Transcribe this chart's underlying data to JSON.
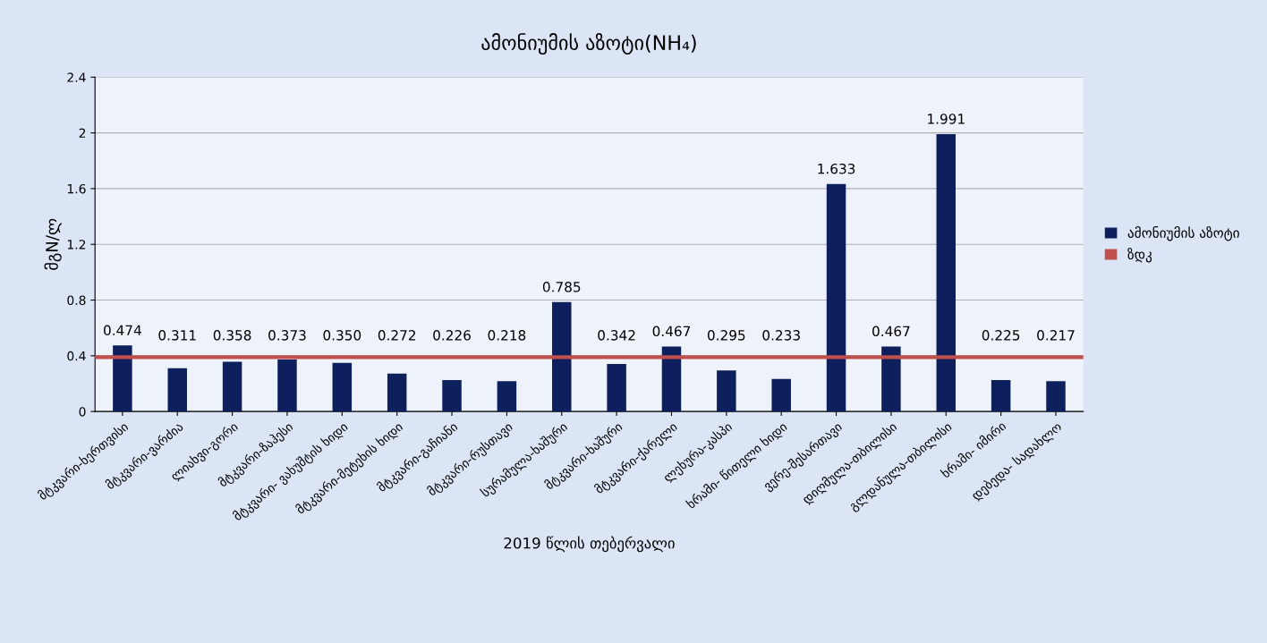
{
  "chart_data": {
    "type": "bar",
    "title": "ამონიუმის აზოტი(NH₄)",
    "xlabel": "2019 წლის თებერვალი",
    "ylabel": "მგN/ლ",
    "categories": [
      "მტკვარი-ხერთვისი",
      "მტკვარი-ვარძია",
      "ლიახვი-გორი",
      "მტკვარი-ზაჰესი",
      "მტკვარი- ვახუშტის ხიდი",
      "მტკვარი-მეტეხის ხიდი",
      "მტკვარი-გაჩიანი",
      "მტკვარი-რუსთავი",
      "სურამულა-ხაშური",
      "მტკვარი-ხაშური",
      "მტკვარი-ქარელი",
      "ლეხურა-კასპი",
      "ხრამი- წითელი ხიდი",
      "ვერე-შესართავი",
      "დიღმულა-თბილისი",
      "გლდანულა-თბილისი",
      "ხრამი- იმირი",
      "დებედა- სადახლო"
    ],
    "series": [
      {
        "name": "ამონიუმის აზოტი",
        "color": "#0d1f5c",
        "values": [
          0.474,
          0.311,
          0.358,
          0.373,
          0.35,
          0.272,
          0.226,
          0.218,
          0.785,
          0.342,
          0.467,
          0.295,
          0.233,
          1.633,
          0.467,
          1.991,
          0.225,
          0.217
        ]
      }
    ],
    "value_labels": [
      "0.474",
      "0.311",
      "0.358",
      "0.373",
      "0.350",
      "0.272",
      "0.226",
      "0.218",
      "0.785",
      "0.342",
      "0.467",
      "0.295",
      "0.233",
      "1.633",
      "0.467",
      "1.991",
      "0.225",
      "0.217"
    ],
    "ref_lines": [
      {
        "axis": "y",
        "value": 0.39,
        "label": "ზდკ",
        "color": "#c0504d",
        "line_style": "solid"
      }
    ],
    "ylim": [
      0,
      2.4
    ],
    "yticks": [
      0,
      0.4,
      0.8,
      1.2,
      1.6,
      2,
      2.4
    ],
    "grid": "y",
    "legend": "right"
  }
}
